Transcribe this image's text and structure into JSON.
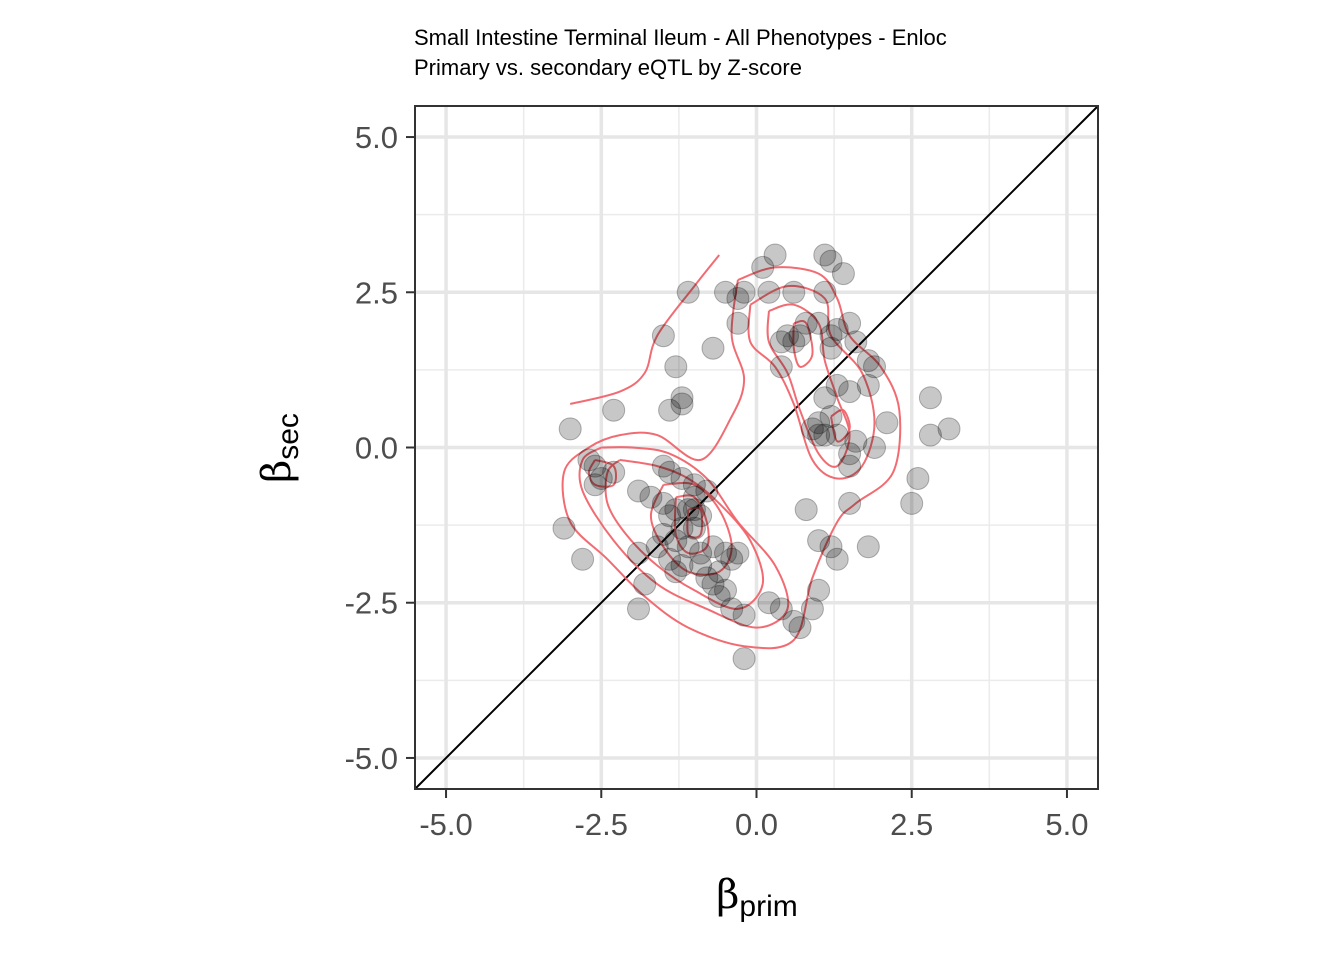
{
  "chart_data": {
    "type": "scatter",
    "title": "Small Intestine Terminal Ileum - All Phenotypes - Enloc",
    "subtitle": "Primary vs. secondary eQTL by Z-score",
    "xlabel": {
      "symbol": "β",
      "subscript": "prim"
    },
    "ylabel": {
      "symbol": "β",
      "subscript": "sec"
    },
    "xlim": [
      -5.5,
      5.5
    ],
    "ylim": [
      -5.5,
      5.5
    ],
    "xticks": [
      -5.0,
      -2.5,
      0.0,
      2.5,
      5.0
    ],
    "yticks": [
      -5.0,
      -2.5,
      0.0,
      2.5,
      5.0
    ],
    "xtick_labels": [
      "-5.0",
      "-2.5",
      "0.0",
      "2.5",
      "5.0"
    ],
    "ytick_labels": [
      "-5.0",
      "-2.5",
      "0.0",
      "2.5",
      "5.0"
    ],
    "grid": true,
    "reference_line": {
      "slope": 1,
      "intercept": 0,
      "color": "#000000"
    },
    "point_color": "#000000",
    "point_opacity": 0.22,
    "contour_color": "#f0646a",
    "points": [
      [
        0.3,
        3.1
      ],
      [
        1.1,
        3.1
      ],
      [
        1.2,
        3.0
      ],
      [
        0.1,
        2.9
      ],
      [
        1.4,
        2.8
      ],
      [
        -1.1,
        2.5
      ],
      [
        -0.5,
        2.5
      ],
      [
        -0.2,
        2.5
      ],
      [
        0.6,
        2.5
      ],
      [
        1.1,
        2.5
      ],
      [
        -0.3,
        2.4
      ],
      [
        0.2,
        2.5
      ],
      [
        -0.3,
        2.0
      ],
      [
        0.8,
        2.0
      ],
      [
        1.0,
        2.0
      ],
      [
        1.5,
        2.0
      ],
      [
        1.3,
        1.9
      ],
      [
        1.2,
        1.8
      ],
      [
        0.4,
        1.7
      ],
      [
        0.5,
        1.8
      ],
      [
        0.6,
        1.7
      ],
      [
        0.7,
        1.8
      ],
      [
        1.2,
        1.6
      ],
      [
        1.6,
        1.7
      ],
      [
        1.8,
        1.4
      ],
      [
        -1.5,
        1.8
      ],
      [
        -0.7,
        1.6
      ],
      [
        -1.3,
        1.3
      ],
      [
        0.4,
        1.3
      ],
      [
        1.3,
        1.0
      ],
      [
        1.5,
        0.9
      ],
      [
        1.9,
        1.3
      ],
      [
        1.8,
        1.0
      ],
      [
        1.1,
        0.8
      ],
      [
        1.2,
        0.5
      ],
      [
        1.0,
        0.4
      ],
      [
        1.0,
        0.2
      ],
      [
        1.1,
        0.2
      ],
      [
        0.9,
        0.3
      ],
      [
        1.3,
        0.2
      ],
      [
        1.6,
        0.1
      ],
      [
        1.5,
        -0.1
      ],
      [
        1.5,
        -0.3
      ],
      [
        2.1,
        0.4
      ],
      [
        2.8,
        0.8
      ],
      [
        2.8,
        0.2
      ],
      [
        3.1,
        0.3
      ],
      [
        1.9,
        0.0
      ],
      [
        -1.2,
        0.8
      ],
      [
        -1.4,
        0.6
      ],
      [
        -1.2,
        0.7
      ],
      [
        -2.3,
        0.6
      ],
      [
        -3.0,
        0.3
      ],
      [
        -2.7,
        -0.2
      ],
      [
        -2.6,
        -0.3
      ],
      [
        -2.5,
        -0.5
      ],
      [
        -2.6,
        -0.6
      ],
      [
        -2.3,
        -0.4
      ],
      [
        -1.5,
        -0.3
      ],
      [
        -1.4,
        -0.4
      ],
      [
        -1.2,
        -0.5
      ],
      [
        -1.0,
        -0.6
      ],
      [
        -0.8,
        -0.7
      ],
      [
        -1.9,
        -0.7
      ],
      [
        -1.7,
        -0.8
      ],
      [
        -1.5,
        -0.9
      ],
      [
        -1.3,
        -1.0
      ],
      [
        -1.1,
        -1.0
      ],
      [
        -1.0,
        -1.0
      ],
      [
        -0.9,
        -1.1
      ],
      [
        -1.4,
        -1.1
      ],
      [
        -1.2,
        -1.3
      ],
      [
        -1.0,
        -1.3
      ],
      [
        -1.5,
        -1.4
      ],
      [
        -1.3,
        -1.5
      ],
      [
        -1.1,
        -1.6
      ],
      [
        -0.7,
        -1.6
      ],
      [
        -0.9,
        -1.7
      ],
      [
        -0.5,
        -1.7
      ],
      [
        -0.3,
        -1.7
      ],
      [
        -1.9,
        -1.7
      ],
      [
        -1.4,
        -1.8
      ],
      [
        -1.2,
        -1.9
      ],
      [
        -0.9,
        -1.9
      ],
      [
        -0.6,
        -2.0
      ],
      [
        -1.3,
        -2.0
      ],
      [
        -1.8,
        -2.2
      ],
      [
        -0.7,
        -2.2
      ],
      [
        -0.5,
        -2.3
      ],
      [
        -0.4,
        -2.6
      ],
      [
        -0.2,
        -2.7
      ],
      [
        -1.9,
        -2.6
      ],
      [
        -3.1,
        -1.3
      ],
      [
        -2.8,
        -1.8
      ],
      [
        -0.2,
        -3.4
      ],
      [
        0.2,
        -2.5
      ],
      [
        0.4,
        -2.6
      ],
      [
        0.6,
        -2.8
      ],
      [
        0.7,
        -2.9
      ],
      [
        0.9,
        -2.6
      ],
      [
        1.0,
        -2.3
      ],
      [
        0.8,
        -1.0
      ],
      [
        1.0,
        -1.5
      ],
      [
        1.2,
        -1.6
      ],
      [
        1.3,
        -1.8
      ],
      [
        1.5,
        -0.9
      ],
      [
        1.8,
        -1.6
      ],
      [
        2.5,
        -0.9
      ],
      [
        2.6,
        -0.5
      ],
      [
        -0.6,
        -2.4
      ],
      [
        -0.8,
        -2.1
      ],
      [
        -0.4,
        -1.8
      ],
      [
        -1.6,
        -1.6
      ],
      [
        -1.0,
        -0.8
      ]
    ],
    "density_levels": [
      {
        "level": 1,
        "points": [
          [
            -3.0,
            0.7
          ],
          [
            -2.2,
            0.9
          ],
          [
            -1.8,
            1.2
          ],
          [
            -1.6,
            1.8
          ],
          [
            -1.0,
            2.6
          ],
          [
            -0.6,
            3.1
          ]
        ]
      },
      {
        "level": 1,
        "points": [
          [
            -0.3,
            2.7
          ],
          [
            0.3,
            2.9
          ],
          [
            1.0,
            2.8
          ],
          [
            1.3,
            2.4
          ],
          [
            1.5,
            1.8
          ],
          [
            2.0,
            1.3
          ],
          [
            2.3,
            0.6
          ],
          [
            2.2,
            -0.4
          ],
          [
            1.6,
            -0.9
          ],
          [
            1.3,
            -1.2
          ],
          [
            0.9,
            -2.1
          ],
          [
            0.6,
            -3.1
          ],
          [
            -0.2,
            -3.2
          ],
          [
            -1.1,
            -2.9
          ],
          [
            -1.8,
            -2.4
          ],
          [
            -2.4,
            -1.8
          ],
          [
            -3.0,
            -1.2
          ],
          [
            -3.1,
            -0.4
          ],
          [
            -2.7,
            0.0
          ],
          [
            -2.2,
            0.2
          ],
          [
            -1.6,
            0.2
          ],
          [
            -0.9,
            -0.2
          ],
          [
            -0.4,
            0.5
          ],
          [
            -0.2,
            1.1
          ],
          [
            -0.4,
            1.8
          ],
          [
            -0.3,
            2.7
          ]
        ]
      },
      {
        "level": 2,
        "points": [
          [
            -0.1,
            2.3
          ],
          [
            0.5,
            2.6
          ],
          [
            1.1,
            2.4
          ],
          [
            1.2,
            1.8
          ],
          [
            1.7,
            1.2
          ],
          [
            1.9,
            0.4
          ],
          [
            1.7,
            -0.3
          ],
          [
            1.3,
            -0.5
          ],
          [
            0.9,
            -0.2
          ],
          [
            0.6,
            0.7
          ],
          [
            0.3,
            1.3
          ],
          [
            -0.1,
            1.7
          ],
          [
            -0.1,
            2.3
          ]
        ]
      },
      {
        "level": 2,
        "points": [
          [
            -2.5,
            0.0
          ],
          [
            -2.0,
            0.0
          ],
          [
            -1.4,
            -0.1
          ],
          [
            -0.8,
            -0.5
          ],
          [
            -0.3,
            -1.2
          ],
          [
            0.3,
            -1.9
          ],
          [
            0.5,
            -2.6
          ],
          [
            0.0,
            -2.9
          ],
          [
            -0.8,
            -2.6
          ],
          [
            -1.6,
            -2.2
          ],
          [
            -2.3,
            -1.5
          ],
          [
            -2.8,
            -0.7
          ],
          [
            -2.8,
            -0.2
          ],
          [
            -2.5,
            0.0
          ]
        ]
      },
      {
        "level": 3,
        "points": [
          [
            0.2,
            2.2
          ],
          [
            0.6,
            2.3
          ],
          [
            1.0,
            2.0
          ],
          [
            1.1,
            1.4
          ],
          [
            1.3,
            0.8
          ],
          [
            1.5,
            0.2
          ],
          [
            1.3,
            -0.3
          ],
          [
            1.0,
            -0.1
          ],
          [
            0.7,
            0.6
          ],
          [
            0.5,
            1.2
          ],
          [
            0.2,
            1.7
          ],
          [
            0.2,
            2.2
          ]
        ]
      },
      {
        "level": 3,
        "points": [
          [
            -2.2,
            -0.2
          ],
          [
            -1.6,
            -0.3
          ],
          [
            -1.1,
            -0.5
          ],
          [
            -0.6,
            -0.9
          ],
          [
            -0.1,
            -1.5
          ],
          [
            0.1,
            -2.2
          ],
          [
            -0.3,
            -2.6
          ],
          [
            -1.0,
            -2.3
          ],
          [
            -1.6,
            -1.9
          ],
          [
            -2.1,
            -1.4
          ],
          [
            -2.4,
            -0.9
          ],
          [
            -2.4,
            -0.4
          ],
          [
            -2.2,
            -0.2
          ]
        ]
      },
      {
        "level": 4,
        "points": [
          [
            0.6,
            2.0
          ],
          [
            0.8,
            2.0
          ],
          [
            0.9,
            1.5
          ],
          [
            0.7,
            1.3
          ],
          [
            0.6,
            1.6
          ],
          [
            0.6,
            2.0
          ]
        ]
      },
      {
        "level": 4,
        "points": [
          [
            1.2,
            0.5
          ],
          [
            1.4,
            0.6
          ],
          [
            1.5,
            0.3
          ],
          [
            1.3,
            0.1
          ],
          [
            1.2,
            0.5
          ]
        ]
      },
      {
        "level": 4,
        "points": [
          [
            -1.5,
            -0.6
          ],
          [
            -1.0,
            -0.6
          ],
          [
            -0.6,
            -1.0
          ],
          [
            -0.4,
            -1.6
          ],
          [
            -0.6,
            -2.0
          ],
          [
            -1.1,
            -2.0
          ],
          [
            -1.5,
            -1.6
          ],
          [
            -1.7,
            -1.1
          ],
          [
            -1.5,
            -0.6
          ]
        ]
      },
      {
        "level": 5,
        "points": [
          [
            -1.3,
            -0.8
          ],
          [
            -1.0,
            -0.8
          ],
          [
            -0.8,
            -1.2
          ],
          [
            -0.8,
            -1.6
          ],
          [
            -1.1,
            -1.7
          ],
          [
            -1.3,
            -1.4
          ],
          [
            -1.3,
            -0.8
          ]
        ]
      },
      {
        "level": 5,
        "points": [
          [
            -2.6,
            -0.2
          ],
          [
            -2.3,
            -0.3
          ],
          [
            -2.3,
            -0.6
          ],
          [
            -2.6,
            -0.6
          ],
          [
            -2.7,
            -0.4
          ],
          [
            -2.6,
            -0.2
          ]
        ]
      },
      {
        "level": 6,
        "points": [
          [
            -1.1,
            -1.0
          ],
          [
            -0.9,
            -1.0
          ],
          [
            -0.9,
            -1.4
          ],
          [
            -1.1,
            -1.4
          ],
          [
            -1.1,
            -1.0
          ]
        ]
      }
    ]
  }
}
